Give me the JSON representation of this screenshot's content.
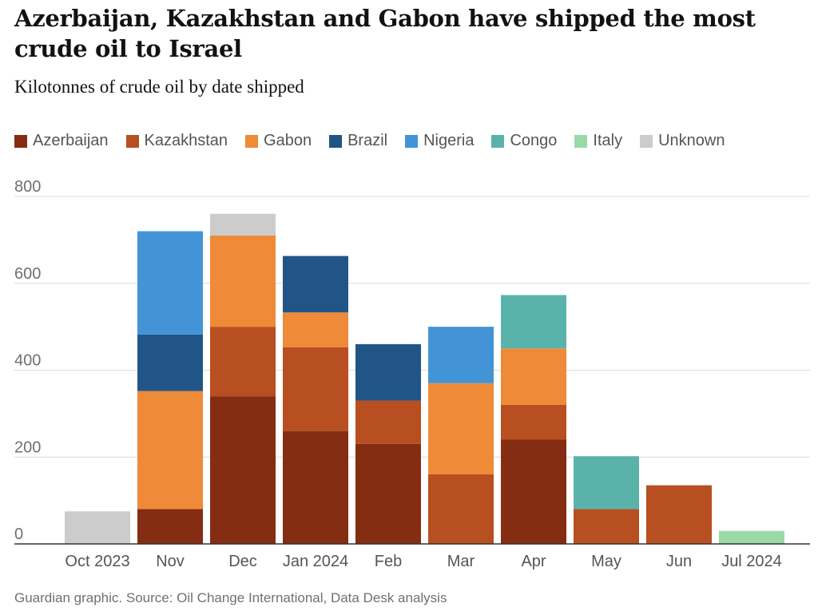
{
  "title": "Azerbaijan, Kazakhstan and Gabon have shipped the most crude oil to Israel",
  "subtitle": "Kilotonnes of crude oil by date shipped",
  "source": "Guardian graphic. Source: Oil Change International, Data Desk analysis",
  "chart_data": {
    "type": "bar",
    "stacked": true,
    "title": "Azerbaijan, Kazakhstan and Gabon have shipped the most crude oil to Israel",
    "subtitle": "Kilotonnes of crude oil by date shipped",
    "ylim": [
      0,
      800
    ],
    "yticks": [
      0,
      200,
      400,
      600,
      800
    ],
    "grid": true,
    "legend_position": "top",
    "categories": [
      "Oct 2023",
      "Nov",
      "Dec",
      "Jan 2024",
      "Feb",
      "Mar",
      "Apr",
      "May",
      "Jun",
      "Jul 2024"
    ],
    "series": [
      {
        "name": "Azerbaijan",
        "color": "#842d12",
        "values": [
          0,
          80,
          340,
          260,
          230,
          0,
          240,
          0,
          0,
          0
        ]
      },
      {
        "name": "Kazakhstan",
        "color": "#b84f20",
        "values": [
          0,
          0,
          160,
          193,
          100,
          160,
          80,
          80,
          135,
          0
        ]
      },
      {
        "name": "Gabon",
        "color": "#ef8a38",
        "values": [
          0,
          272,
          210,
          80,
          0,
          210,
          130,
          0,
          0,
          0
        ]
      },
      {
        "name": "Brazil",
        "color": "#225587",
        "values": [
          0,
          130,
          0,
          130,
          130,
          0,
          0,
          0,
          0,
          0
        ]
      },
      {
        "name": "Nigeria",
        "color": "#4394d6",
        "values": [
          0,
          238,
          0,
          0,
          0,
          130,
          0,
          0,
          0,
          0
        ]
      },
      {
        "name": "Congo",
        "color": "#5ab3ab",
        "values": [
          0,
          0,
          0,
          0,
          0,
          0,
          123,
          122,
          0,
          0
        ]
      },
      {
        "name": "Italy",
        "color": "#99d9a7",
        "values": [
          0,
          0,
          0,
          0,
          0,
          0,
          0,
          0,
          0,
          30
        ]
      },
      {
        "name": "Unknown",
        "color": "#cccccc",
        "values": [
          75,
          0,
          50,
          0,
          0,
          0,
          0,
          0,
          0,
          0
        ]
      }
    ]
  }
}
